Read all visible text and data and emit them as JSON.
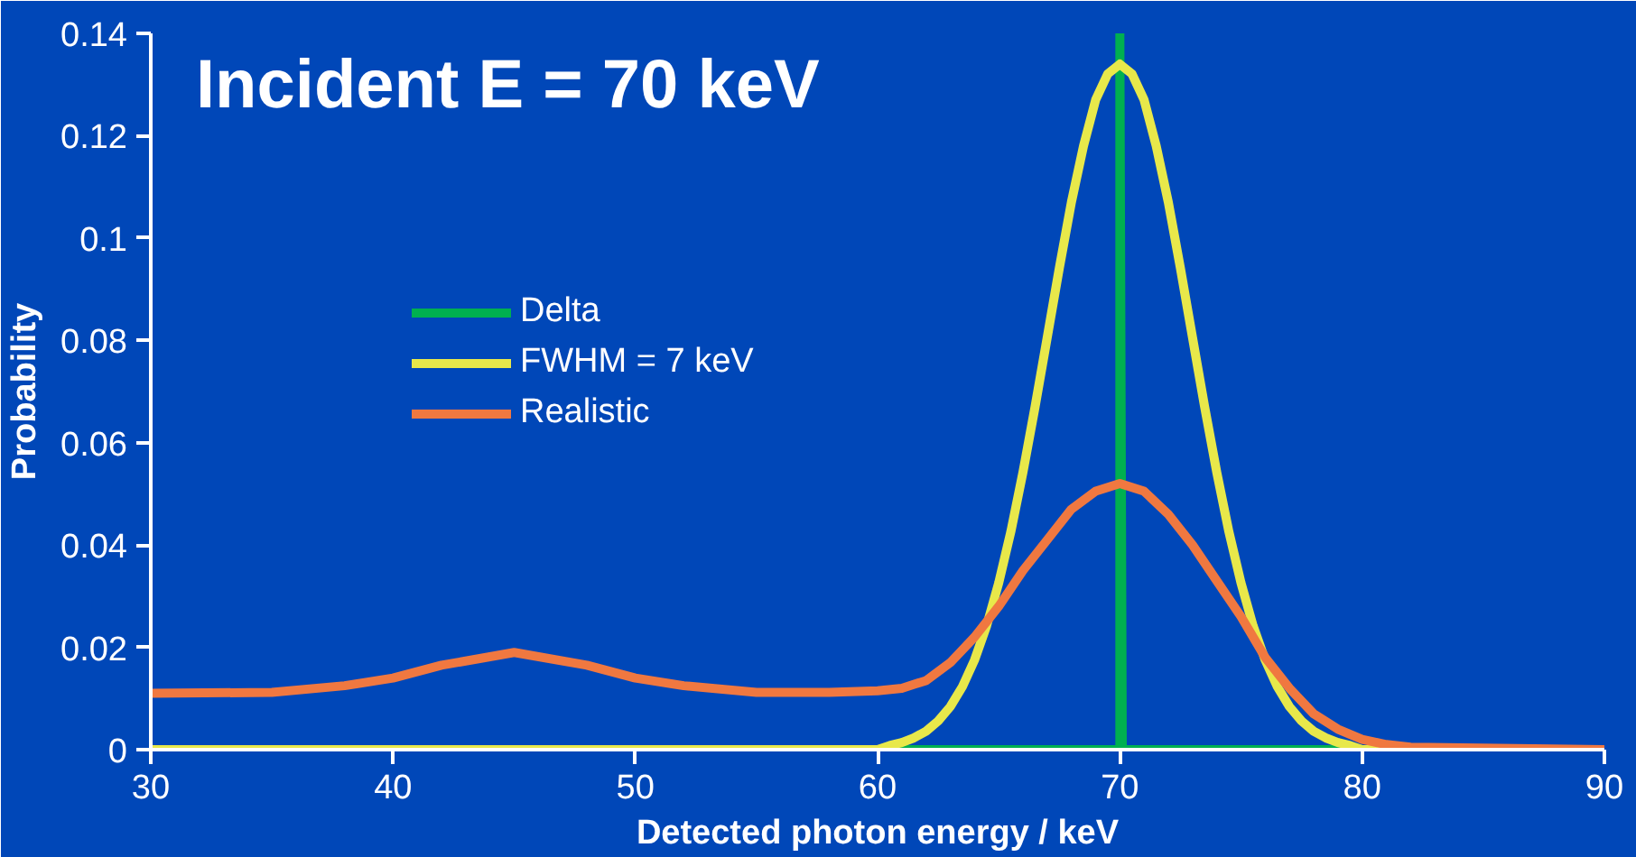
{
  "chart_data": {
    "type": "line",
    "title": "Incident E = 70 keV",
    "xlabel": "Detected photon energy / keV",
    "ylabel": "Probability",
    "xlim": [
      30,
      90
    ],
    "xticks": [
      30,
      40,
      50,
      60,
      70,
      80,
      90
    ],
    "ylim": [
      0,
      0.14
    ],
    "yticks": [
      0,
      0.02,
      0.04,
      0.06,
      {
        "value": 0.08,
        "label": "0.08"
      },
      {
        "value": 0.1,
        "label": "0.1"
      },
      {
        "value": 0.12,
        "label": "0.12"
      },
      {
        "value": 0.14,
        "label": "0.14"
      }
    ],
    "grid": false,
    "legend": "top left",
    "marker": "none",
    "line_style": "solid",
    "series": [
      {
        "name": "Delta",
        "color": "#00b050",
        "x": [
          30,
          69.9,
          70,
          70,
          70.1,
          90
        ],
        "values": [
          0,
          0,
          0,
          0.14,
          0,
          0
        ]
      },
      {
        "name": "FWHM = 7 keV",
        "color": "#e8e84a",
        "x": [
          30,
          60,
          60.5,
          61,
          61.5,
          62,
          62.5,
          63,
          63.5,
          64,
          64.5,
          65,
          65.5,
          66,
          66.5,
          67,
          67.5,
          68,
          68.5,
          69,
          69.5,
          70,
          70.5,
          71,
          71.5,
          72,
          72.5,
          73,
          73.5,
          74,
          74.5,
          75,
          75.5,
          76,
          76.5,
          77,
          77.5,
          78,
          78.5,
          79,
          79.5,
          80,
          90
        ],
        "values": [
          0,
          0,
          0.0008,
          0.0014,
          0.0023,
          0.0036,
          0.0056,
          0.0084,
          0.0123,
          0.0175,
          0.0242,
          0.0326,
          0.0426,
          0.0542,
          0.067,
          0.0805,
          0.0941,
          0.107,
          0.118,
          0.127,
          0.1321,
          0.134,
          0.1321,
          0.127,
          0.118,
          0.107,
          0.0941,
          0.0805,
          0.067,
          0.0542,
          0.0426,
          0.0326,
          0.0242,
          0.0175,
          0.0123,
          0.0084,
          0.0056,
          0.0036,
          0.0023,
          0.0014,
          0.0008,
          0,
          0
        ]
      },
      {
        "name": "Realistic",
        "color": "#f07840",
        "x": [
          30,
          35,
          38,
          40,
          42,
          45,
          48,
          50,
          52,
          55,
          58,
          60,
          61,
          62,
          63,
          64,
          65,
          66,
          67,
          68,
          69,
          70,
          71,
          72,
          73,
          74,
          75,
          76,
          77,
          78,
          79,
          80,
          81,
          82,
          90
        ],
        "values": [
          0.011,
          0.0112,
          0.0125,
          0.014,
          0.0165,
          0.019,
          0.0165,
          0.014,
          0.0125,
          0.0112,
          0.0112,
          0.0115,
          0.012,
          0.0135,
          0.017,
          0.022,
          0.028,
          0.035,
          0.041,
          0.047,
          0.0505,
          0.052,
          0.0505,
          0.046,
          0.04,
          0.033,
          0.026,
          0.018,
          0.012,
          0.007,
          0.004,
          0.002,
          0.001,
          0.0005,
          0
        ]
      }
    ]
  }
}
